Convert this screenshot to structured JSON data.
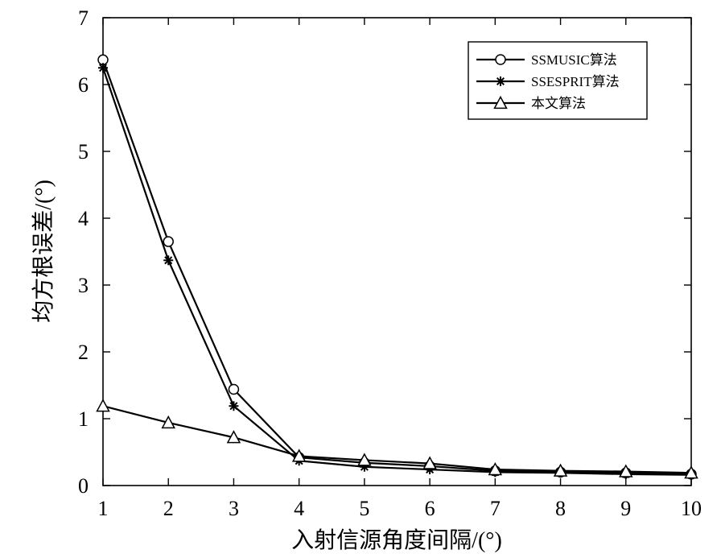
{
  "chart_data": {
    "type": "line",
    "title": "",
    "xlabel": "入射信源角度间隔/(°)",
    "ylabel": "均方根误差/(°)",
    "xlim": [
      1,
      10
    ],
    "ylim": [
      0,
      7
    ],
    "xticks": [
      "1",
      "2",
      "3",
      "4",
      "5",
      "6",
      "7",
      "8",
      "9",
      "10"
    ],
    "yticks": [
      "0",
      "1",
      "2",
      "3",
      "4",
      "5",
      "6",
      "7"
    ],
    "grid": false,
    "legend_position": "top-right",
    "x": [
      1,
      2,
      3,
      4,
      5,
      6,
      7,
      8,
      9,
      10
    ],
    "series": [
      {
        "name": "SSMUSIC算法",
        "marker": "circle",
        "color": "#000000",
        "values": [
          6.37,
          3.65,
          1.44,
          0.42,
          0.34,
          0.29,
          0.22,
          0.2,
          0.19,
          0.17
        ]
      },
      {
        "name": "SSESPRIT算法",
        "marker": "asterisk",
        "color": "#000000",
        "values": [
          6.25,
          3.37,
          1.19,
          0.37,
          0.28,
          0.24,
          0.2,
          0.19,
          0.17,
          0.16
        ]
      },
      {
        "name": "本文算法",
        "marker": "triangle",
        "color": "#000000",
        "values": [
          1.19,
          0.94,
          0.72,
          0.44,
          0.38,
          0.33,
          0.24,
          0.22,
          0.21,
          0.19
        ]
      }
    ]
  }
}
